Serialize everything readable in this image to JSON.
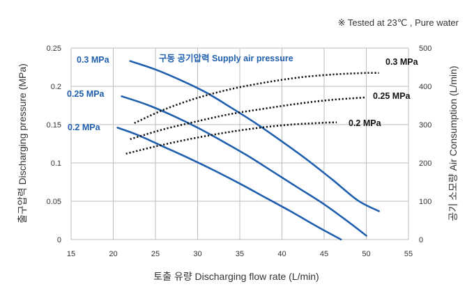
{
  "note": "※  Tested at  23℃ , Pure water",
  "chart_data": {
    "type": "line",
    "xlabel": "토출 유량 Discharging flow rate (L/min)",
    "ylabel_left": "출구압력 Discharging pressure (MPa)",
    "ylabel_right": "공기 소모량 Air Consumption (L/min)",
    "subtitle": "구동 공기압력 Supply air pressure",
    "xlim": [
      15,
      55
    ],
    "xticks": [
      "15",
      "20",
      "25",
      "30",
      "35",
      "40",
      "45",
      "50",
      "55"
    ],
    "ylim_left": [
      0,
      0.25
    ],
    "yticks_left": [
      "0",
      "0.05",
      "0.1",
      "0.15",
      "0.2",
      "0.25"
    ],
    "ylim_right": [
      0,
      500
    ],
    "yticks_right": [
      "0",
      "100",
      "200",
      "300",
      "400",
      "500"
    ],
    "grid": true,
    "colors": {
      "pressure": "#1f5fae",
      "air": "#111111"
    },
    "pressure_series": [
      {
        "name": "0.3 MPa",
        "x": [
          22,
          25,
          28,
          31,
          34,
          37,
          40,
          43,
          46,
          49,
          51.5
        ],
        "y": [
          0.233,
          0.222,
          0.208,
          0.192,
          0.172,
          0.151,
          0.128,
          0.104,
          0.078,
          0.051,
          0.037
        ]
      },
      {
        "name": "0.25 MPa",
        "x": [
          21,
          24,
          27,
          30,
          33,
          36,
          39,
          42,
          45,
          48,
          50
        ],
        "y": [
          0.187,
          0.176,
          0.162,
          0.146,
          0.128,
          0.109,
          0.088,
          0.067,
          0.046,
          0.022,
          0.005
        ]
      },
      {
        "name": "0.2 MPa",
        "x": [
          20.5,
          23,
          26,
          29,
          32,
          35,
          38,
          41,
          44,
          47
        ],
        "y": [
          0.146,
          0.136,
          0.121,
          0.106,
          0.09,
          0.073,
          0.055,
          0.037,
          0.018,
          0.0
        ]
      }
    ],
    "air_series": [
      {
        "name": "0.3 MPa",
        "x": [
          22.5,
          26,
          30,
          34,
          38,
          42,
          46,
          50,
          51.5
        ],
        "y": [
          304,
          339,
          370,
          393,
          410,
          423,
          431,
          435,
          435
        ]
      },
      {
        "name": "0.25 MPa",
        "x": [
          22,
          26,
          30,
          34,
          38,
          42,
          46,
          50
        ],
        "y": [
          262,
          288,
          309,
          328,
          342,
          355,
          365,
          371
        ]
      },
      {
        "name": "0.2 MPa",
        "x": [
          21.5,
          25,
          29,
          33,
          37,
          41,
          45,
          46.5
        ],
        "y": [
          224,
          243,
          262,
          278,
          291,
          300,
          305,
          306
        ]
      }
    ]
  }
}
